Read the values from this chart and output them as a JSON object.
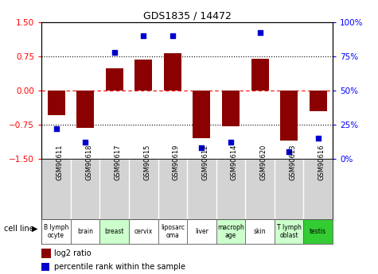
{
  "title": "GDS1835 / 14472",
  "samples": [
    "GSM90611",
    "GSM90618",
    "GSM90617",
    "GSM90615",
    "GSM90619",
    "GSM90612",
    "GSM90614",
    "GSM90620",
    "GSM90613",
    "GSM90616"
  ],
  "cell_lines": [
    "B lymph\nocyte",
    "brain",
    "breast",
    "cervix",
    "liposarc\noma",
    "liver",
    "macroph\nage",
    "skin",
    "T lymph\noblast",
    "testis"
  ],
  "cell_line_colors": [
    "#ffffff",
    "#ffffff",
    "#ccffcc",
    "#ffffff",
    "#ffffff",
    "#ffffff",
    "#ccffcc",
    "#ffffff",
    "#ccffcc",
    "#33cc33"
  ],
  "log2_ratio": [
    -0.55,
    -0.82,
    0.48,
    0.68,
    0.82,
    -1.05,
    -0.78,
    0.7,
    -1.1,
    -0.45
  ],
  "percentile_rank": [
    22,
    12,
    78,
    90,
    90,
    8,
    12,
    92,
    5,
    15
  ],
  "ylim_left": [
    -1.5,
    1.5
  ],
  "ylim_right": [
    0,
    100
  ],
  "yticks_left": [
    -1.5,
    -0.75,
    0,
    0.75,
    1.5
  ],
  "yticks_right": [
    0,
    25,
    50,
    75,
    100
  ],
  "bar_color": "#8B0000",
  "dot_color": "#0000CD",
  "zero_line_color": "#FF0000",
  "dotted_line_color": "#000000",
  "background_color": "#ffffff",
  "plot_bg_color": "#ffffff",
  "sample_area_color": "#d3d3d3",
  "legend_bar_label": "log2 ratio",
  "legend_dot_label": "percentile rank within the sample",
  "cell_line_label": "cell line"
}
